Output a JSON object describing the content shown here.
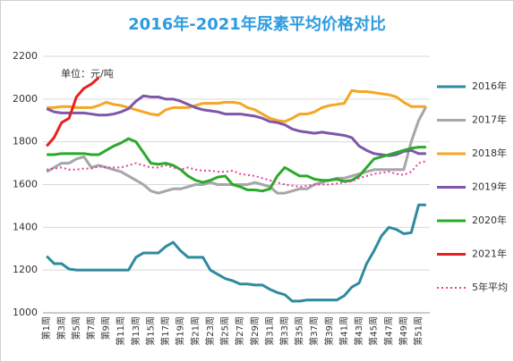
{
  "chart_data": {
    "type": "line",
    "title": "2016年-2021年尿素平均价格对比",
    "annotation": "单位：元/吨",
    "categories": [
      "第1周",
      null,
      "第3周",
      null,
      "第5周",
      null,
      "第7周",
      null,
      "第9周",
      null,
      "第11周",
      null,
      "第13周",
      null,
      "第15周",
      null,
      "第17周",
      null,
      "第19周",
      null,
      "第21周",
      null,
      "第23周",
      null,
      "第25周",
      null,
      "第27周",
      null,
      "第29周",
      null,
      "第31周",
      null,
      "第33周",
      null,
      "第35周",
      null,
      "第37周",
      null,
      "第39周",
      null,
      "第41周",
      null,
      "第43周",
      null,
      "第45周",
      null,
      "第47周",
      null,
      "第49周",
      null,
      "第51周",
      null
    ],
    "ylim": [
      1000,
      2200
    ],
    "yticks": [
      1000,
      1200,
      1400,
      1600,
      1800,
      2000,
      2200
    ],
    "grid": true,
    "legend": "right",
    "series": [
      {
        "name": "2016年",
        "color": "#2e8b9e",
        "style": "solid",
        "values": [
          1265,
          1230,
          1230,
          1205,
          1200,
          1200,
          1200,
          1200,
          1200,
          1200,
          1200,
          1200,
          1260,
          1280,
          1280,
          1280,
          1310,
          1330,
          1290,
          1260,
          1260,
          1260,
          1200,
          1180,
          1160,
          1150,
          1135,
          1135,
          1130,
          1130,
          1110,
          1095,
          1085,
          1055,
          1055,
          1060,
          1060,
          1060,
          1060,
          1060,
          1080,
          1120,
          1140,
          1230,
          1290,
          1360,
          1400,
          1390,
          1370,
          1375,
          1505,
          1505
        ]
      },
      {
        "name": "2017年",
        "color": "#a6a6a6",
        "style": "solid",
        "values": [
          1660,
          1680,
          1700,
          1700,
          1720,
          1730,
          1680,
          1690,
          1680,
          1670,
          1660,
          1640,
          1620,
          1600,
          1570,
          1560,
          1570,
          1580,
          1580,
          1590,
          1600,
          1600,
          1610,
          1600,
          1600,
          1600,
          1600,
          1600,
          1610,
          1600,
          1590,
          1560,
          1560,
          1570,
          1580,
          1580,
          1600,
          1610,
          1620,
          1630,
          1630,
          1640,
          1650,
          1660,
          1670,
          1670,
          1670,
          1670,
          1670,
          1800,
          1900,
          1965
        ]
      },
      {
        "name": "2018年",
        "color": "#f5a623",
        "style": "solid",
        "values": [
          1960,
          1960,
          1965,
          1965,
          1960,
          1960,
          1960,
          1970,
          1985,
          1975,
          1970,
          1960,
          1950,
          1940,
          1930,
          1925,
          1950,
          1960,
          1960,
          1960,
          1970,
          1980,
          1980,
          1980,
          1985,
          1985,
          1980,
          1960,
          1950,
          1930,
          1910,
          1900,
          1895,
          1910,
          1930,
          1930,
          1940,
          1960,
          1970,
          1975,
          1980,
          2040,
          2035,
          2035,
          2030,
          2025,
          2020,
          2010,
          1985,
          1965,
          1965,
          1965
        ]
      },
      {
        "name": "2019年",
        "color": "#7e57a8",
        "style": "solid",
        "values": [
          1955,
          1940,
          1935,
          1935,
          1935,
          1935,
          1930,
          1925,
          1925,
          1930,
          1940,
          1955,
          1990,
          2015,
          2010,
          2010,
          2000,
          2000,
          1990,
          1975,
          1960,
          1950,
          1945,
          1940,
          1930,
          1930,
          1930,
          1925,
          1920,
          1910,
          1895,
          1890,
          1880,
          1860,
          1850,
          1845,
          1840,
          1845,
          1840,
          1835,
          1830,
          1820,
          1780,
          1760,
          1745,
          1740,
          1735,
          1740,
          1755,
          1760,
          1745,
          1745
        ]
      },
      {
        "name": "2020年",
        "color": "#2aaa2a",
        "style": "solid",
        "values": [
          1740,
          1740,
          1745,
          1745,
          1745,
          1745,
          1740,
          1740,
          1760,
          1780,
          1795,
          1815,
          1800,
          1750,
          1700,
          1695,
          1700,
          1690,
          1670,
          1640,
          1620,
          1610,
          1620,
          1635,
          1640,
          1600,
          1590,
          1575,
          1575,
          1570,
          1580,
          1640,
          1680,
          1660,
          1640,
          1640,
          1625,
          1620,
          1620,
          1625,
          1615,
          1620,
          1640,
          1680,
          1720,
          1730,
          1740,
          1750,
          1760,
          1770,
          1775,
          1775
        ]
      },
      {
        "name": "2021年",
        "color": "#e8201f",
        "style": "solid",
        "values": [
          1780,
          1820,
          1890,
          1910,
          2010,
          2050,
          2070,
          2100,
          null,
          null,
          null,
          null,
          null,
          null,
          null,
          null,
          null,
          null,
          null,
          null,
          null,
          null,
          null,
          null,
          null,
          null,
          null,
          null,
          null,
          null,
          null,
          null,
          null,
          null,
          null,
          null,
          null,
          null,
          null,
          null,
          null,
          null,
          null,
          null,
          null,
          null,
          null,
          null,
          null,
          null,
          null,
          null
        ]
      },
      {
        "name": "5年平均",
        "color": "#e8409a",
        "style": "dotted",
        "values": [
          1670,
          1675,
          1680,
          1670,
          1670,
          1675,
          1675,
          1685,
          1680,
          1680,
          1680,
          1690,
          1700,
          1690,
          1680,
          1680,
          1690,
          1680,
          1670,
          1680,
          1670,
          1665,
          1665,
          1660,
          1660,
          1665,
          1650,
          1645,
          1640,
          1630,
          1620,
          1610,
          1600,
          1595,
          1590,
          1595,
          1600,
          1600,
          1600,
          1605,
          1610,
          1615,
          1630,
          1640,
          1650,
          1655,
          1660,
          1650,
          1645,
          1660,
          1700,
          1710
        ]
      }
    ]
  }
}
